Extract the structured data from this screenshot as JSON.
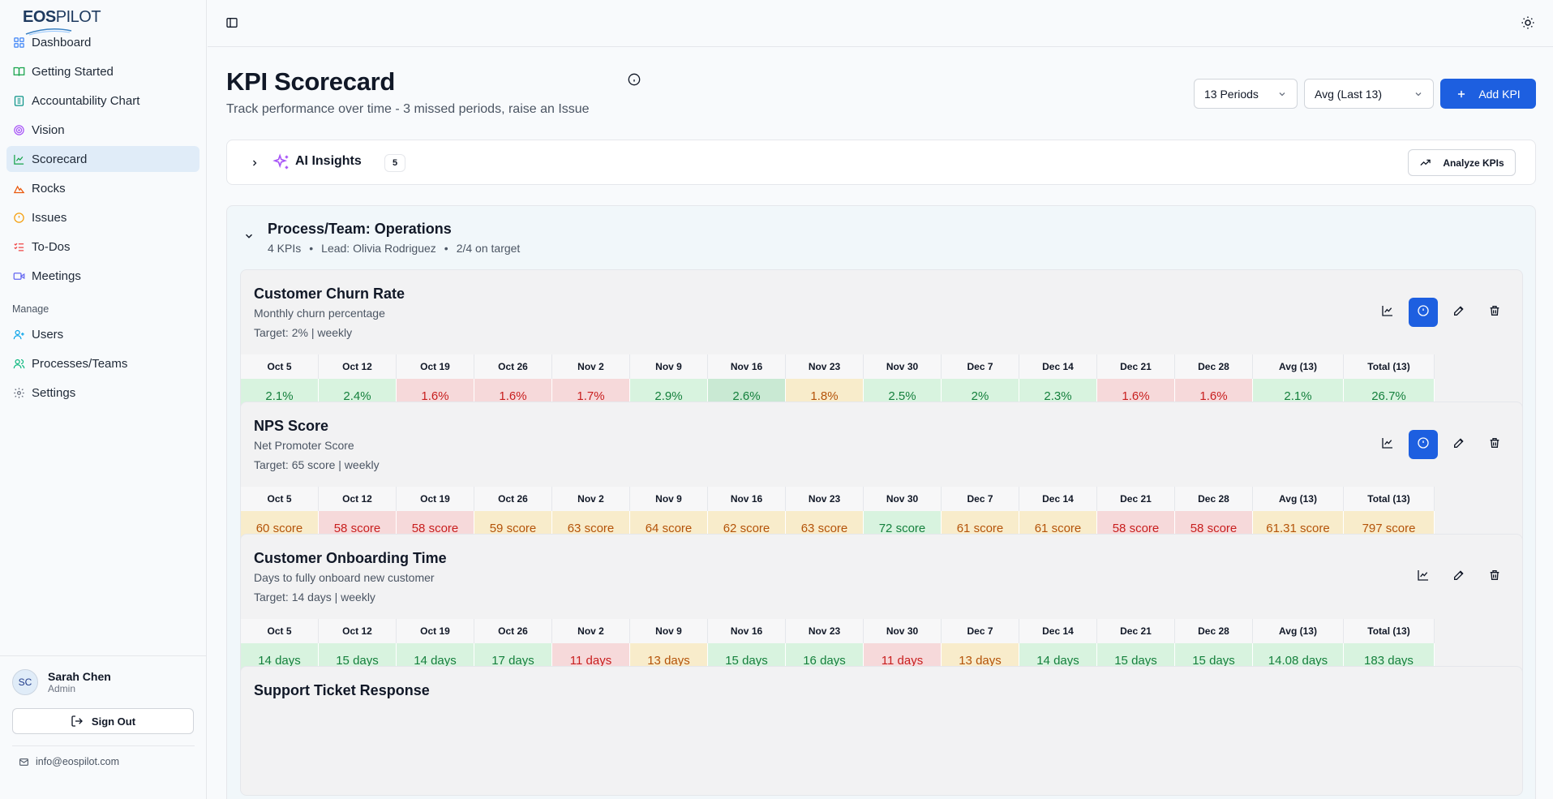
{
  "brand": {
    "logo_text_bold": "EOS",
    "logo_text": "PILOT"
  },
  "sidebar": {
    "items": [
      {
        "label": "Dashboard",
        "icon": "dashboard-icon"
      },
      {
        "label": "Getting Started",
        "icon": "book-icon"
      },
      {
        "label": "Accountability Chart",
        "icon": "org-chart-icon"
      },
      {
        "label": "Vision",
        "icon": "target-icon"
      },
      {
        "label": "Scorecard",
        "icon": "chart-line-icon",
        "active": true
      },
      {
        "label": "Rocks",
        "icon": "mountain-icon"
      },
      {
        "label": "Issues",
        "icon": "alert-circle-icon"
      },
      {
        "label": "To-Dos",
        "icon": "checklist-icon"
      },
      {
        "label": "Meetings",
        "icon": "video-icon"
      }
    ],
    "manage_label": "Manage",
    "manage_items": [
      {
        "label": "Users",
        "icon": "user-plus-icon"
      },
      {
        "label": "Processes/Teams",
        "icon": "users-icon"
      },
      {
        "label": "Settings",
        "icon": "gear-icon"
      }
    ],
    "user": {
      "initials": "SC",
      "name": "Sarah Chen",
      "role": "Admin"
    },
    "sign_out": "Sign Out",
    "email": "info@eospilot.com"
  },
  "header": {
    "title": "KPI Scorecard",
    "subtitle": "Track performance over time - 3 missed periods, raise an Issue",
    "periods_select": "13 Periods",
    "avg_select": "Avg (Last 13)",
    "add_button": "Add KPI"
  },
  "insights": {
    "title": "AI Insights",
    "count": "5",
    "analyze_button": "Analyze KPIs"
  },
  "team": {
    "title": "Process/Team: Operations",
    "kpi_count": "4 KPIs",
    "lead": "Lead: Olivia Rodriguez",
    "on_target": "2/4 on target"
  },
  "columns": [
    "Oct 5",
    "Oct 12",
    "Oct 19",
    "Oct 26",
    "Nov 2",
    "Nov 9",
    "Nov 16",
    "Nov 23",
    "Nov 30",
    "Dec 7",
    "Dec 14",
    "Dec 21",
    "Dec 28",
    "Avg (13)",
    "Total (13)"
  ],
  "kpis": [
    {
      "name": "Customer Churn Rate",
      "description": "Monthly churn percentage",
      "target": "Target: 2% | weekly",
      "has_issue": true,
      "values": [
        "2.1%",
        "2.4%",
        "1.6%",
        "1.6%",
        "1.7%",
        "2.9%",
        "2.6%",
        "1.8%",
        "2.5%",
        "2%",
        "2.3%",
        "1.6%",
        "1.6%",
        "2.1%",
        "26.7%"
      ],
      "status": [
        "g",
        "g",
        "r",
        "r",
        "r",
        "g",
        "g2",
        "y",
        "g",
        "g",
        "g",
        "r",
        "r",
        "g",
        "g"
      ]
    },
    {
      "name": "NPS Score",
      "description": "Net Promoter Score",
      "target": "Target: 65 score | weekly",
      "has_issue": true,
      "values": [
        "60 score",
        "58 score",
        "58 score",
        "59 score",
        "63 score",
        "64 score",
        "62 score",
        "63 score",
        "72 score",
        "61 score",
        "61 score",
        "58 score",
        "58 score",
        "61.31 score",
        "797 score"
      ],
      "status": [
        "y",
        "r",
        "r",
        "y",
        "y",
        "y",
        "y",
        "y",
        "g",
        "y",
        "y",
        "r",
        "r",
        "y",
        "y"
      ]
    },
    {
      "name": "Customer Onboarding Time",
      "description": "Days to fully onboard new customer",
      "target": "Target: 14 days | weekly",
      "has_issue": false,
      "values": [
        "14 days",
        "15 days",
        "14 days",
        "17 days",
        "11 days",
        "13 days",
        "15 days",
        "16 days",
        "11 days",
        "13 days",
        "14 days",
        "15 days",
        "15 days",
        "14.08 days",
        "183 days"
      ],
      "status": [
        "g",
        "g",
        "g",
        "g",
        "r",
        "y",
        "g",
        "g",
        "r",
        "y",
        "g",
        "g",
        "g",
        "g",
        "g"
      ]
    },
    {
      "name": "Support Ticket Response",
      "description": "",
      "target": "",
      "has_issue": false,
      "values": [],
      "status": []
    }
  ]
}
